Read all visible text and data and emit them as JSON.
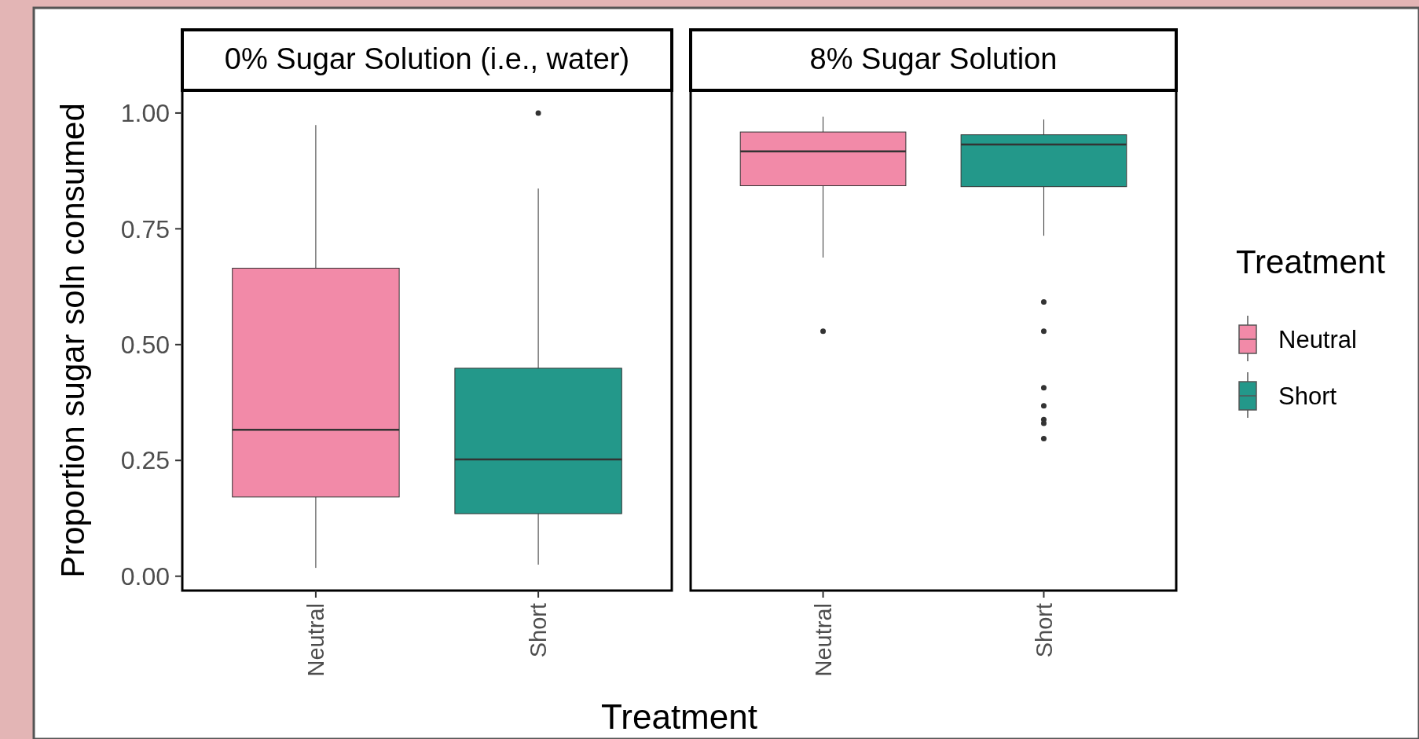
{
  "chart_data": [
    {
      "type": "box",
      "title": "0% Sugar Solution (i.e., water)",
      "ylabel": "Proportion sugar soln consumed",
      "xlabel": "Treatment",
      "categories": [
        "Neutral",
        "Short"
      ],
      "ylim": [
        -0.031,
        1.049
      ],
      "yticks": [
        {
          "value": 0,
          "label": "0.00"
        },
        {
          "value": 0.25,
          "label": "0.25"
        },
        {
          "value": 0.5,
          "label": "0.50"
        },
        {
          "value": 0.75,
          "label": "0.75"
        },
        {
          "value": 1,
          "label": "1.00"
        }
      ],
      "grid": false,
      "legend": false,
      "series": [
        {
          "color": "#f28aa8",
          "boxes": [
            {
              "low": 0.018,
              "q1": 0.171,
              "median": 0.316,
              "q3": 0.665,
              "high": 0.974
            },
            null
          ]
        },
        {
          "color": "#23988a",
          "boxes": [
            null,
            {
              "low": 0.025,
              "q1": 0.135,
              "median": 0.252,
              "q3": 0.449,
              "high": 0.837,
              "outliers": [
                1.0
              ]
            }
          ]
        }
      ]
    },
    {
      "type": "box",
      "title": "8% Sugar Solution",
      "categories": [
        "Neutral",
        "Short"
      ],
      "ylim": [
        -0.031,
        1.049
      ],
      "tick_labels": "x",
      "grid": false,
      "legend": "right",
      "legend_title": "Treatment",
      "series": [
        {
          "name": "Neutral",
          "color": "#f28aa8",
          "boxes": [
            {
              "low": 0.688,
              "q1": 0.843,
              "median": 0.917,
              "q3": 0.959,
              "high": 0.992,
              "outliers": [
                0.529
              ]
            },
            null
          ]
        },
        {
          "name": "Short",
          "color": "#23988a",
          "boxes": [
            null,
            {
              "low": 0.735,
              "q1": 0.841,
              "median": 0.932,
              "q3": 0.953,
              "high": 0.986,
              "outliers": [
                0.592,
                0.529,
                0.407,
                0.368,
                0.338,
                0.33,
                0.297
              ]
            }
          ]
        }
      ]
    }
  ]
}
